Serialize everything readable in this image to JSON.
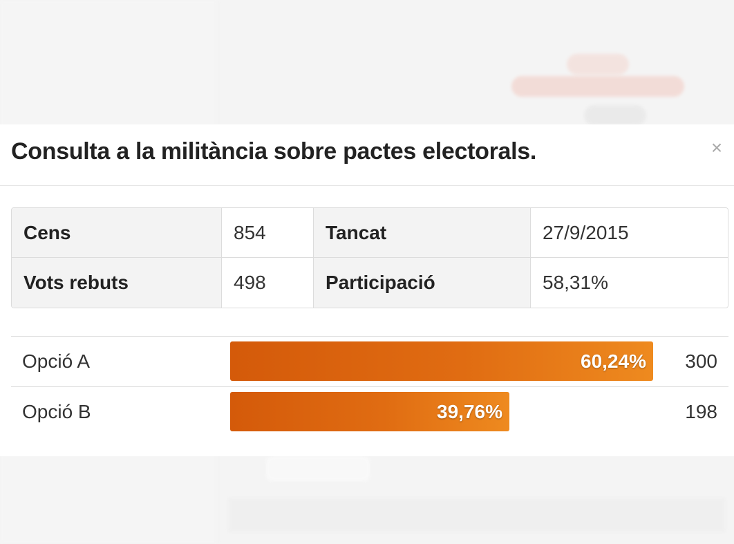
{
  "modal": {
    "title": "Consulta a la militància sobre pactes electorals.",
    "close_glyph": "×"
  },
  "stats": [
    {
      "label": "Cens",
      "value": "854"
    },
    {
      "label": "Tancat",
      "value": "27/9/2015"
    },
    {
      "label": "Vots rebuts",
      "value": "498"
    },
    {
      "label": "Participació",
      "value": "58,31%"
    }
  ],
  "results": [
    {
      "option": "Opció A",
      "percent_label": "60,24%",
      "fraction": 0.6024,
      "votes": "300"
    },
    {
      "option": "Opció B",
      "percent_label": "39,76%",
      "fraction": 0.3976,
      "votes": "198"
    }
  ],
  "colors": {
    "bar_start": "#d45a0a",
    "bar_end": "#ee8a1f"
  },
  "background_app": {
    "blurred": true
  }
}
